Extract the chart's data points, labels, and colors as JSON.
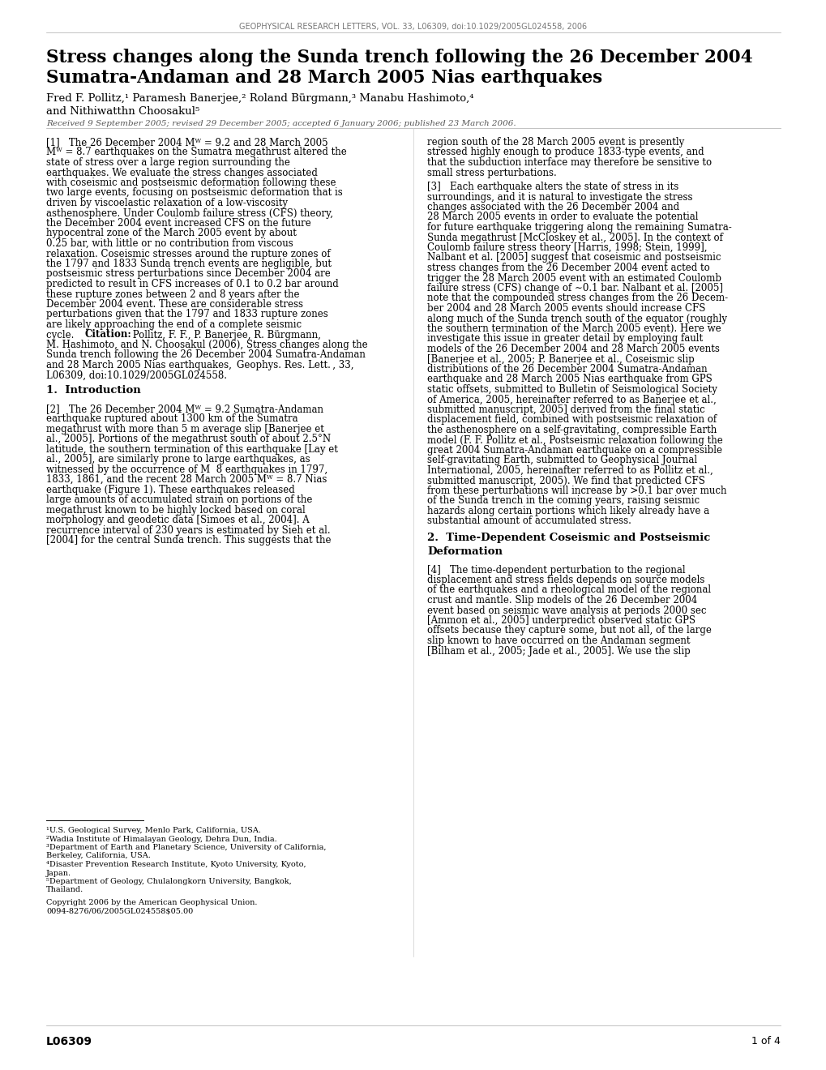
{
  "header": "GEOPHYSICAL RESEARCH LETTERS, VOL. 33, L06309, doi:10.1029/2005GL024558, 2006",
  "title_line1": "Stress changes along the Sunda trench following the 26 December 2004",
  "title_line2": "Sumatra-Andaman and 28 March 2005 Nias earthquakes",
  "received_line": "Received 9 September 2005; revised 29 December 2005; accepted 6 January 2006; published 23 March 2006.",
  "page_footer_left": "L06309",
  "page_footer_right": "1 of 4",
  "bg_color": "#ffffff",
  "text_color": "#000000"
}
